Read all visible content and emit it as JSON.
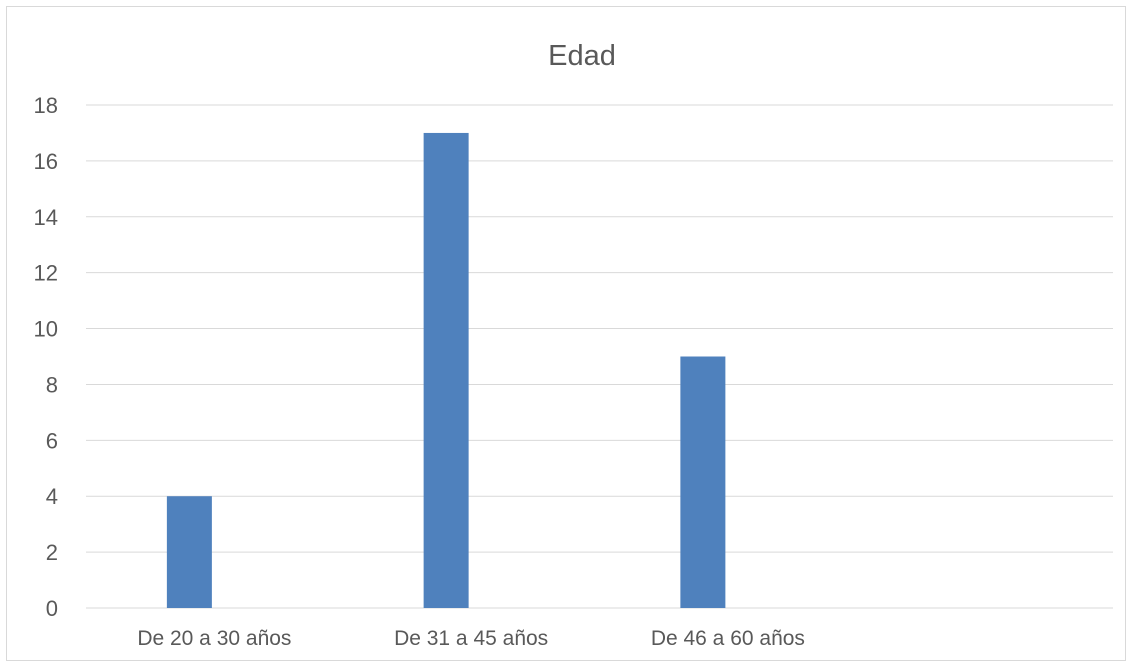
{
  "chart_data": {
    "type": "bar",
    "title": "Edad",
    "categories": [
      "De 20 a 30 años",
      "De 31 a 45 años",
      "De 46 a 60 años",
      ""
    ],
    "series": [
      {
        "values": [
          4,
          17,
          9,
          null
        ],
        "color": "#4f81bd"
      }
    ],
    "ylim": [
      0,
      18
    ],
    "yticks": [
      "0",
      "2",
      "4",
      "6",
      "8",
      "10",
      "12",
      "14",
      "16",
      "18"
    ],
    "grid": true,
    "legend": "none"
  },
  "colors": {
    "bar": "#4f81bd",
    "grid": "#d9d9d9",
    "text": "#595959",
    "border": "#d9d9d9"
  }
}
